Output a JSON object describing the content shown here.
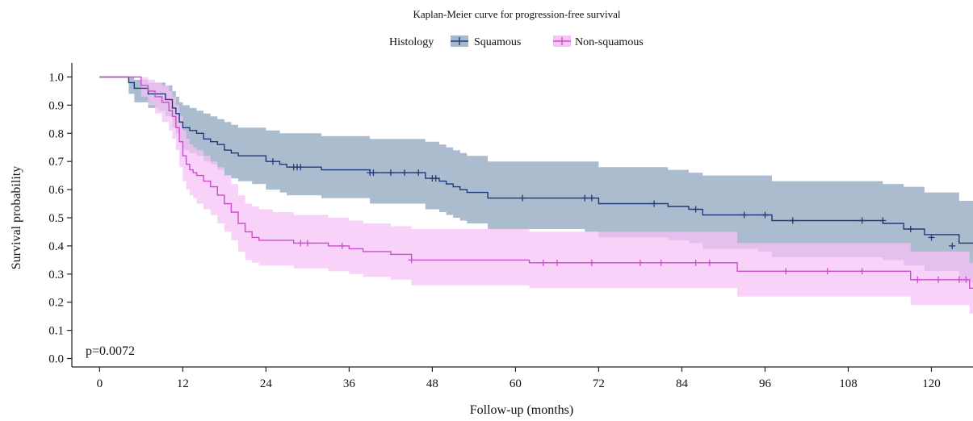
{
  "chart_data": {
    "type": "line",
    "title": "Kaplan-Meier curve for progression-free survival",
    "xlabel": "Follow-up (months)",
    "ylabel": "Survival probability",
    "xlim": [
      -4,
      126
    ],
    "ylim": [
      -0.03,
      1.05
    ],
    "xticks": [
      0,
      12,
      24,
      36,
      48,
      60,
      72,
      84,
      96,
      108,
      120
    ],
    "yticks": [
      0.0,
      0.1,
      0.2,
      0.3,
      0.4,
      0.5,
      0.6,
      0.7,
      0.8,
      0.9,
      1.0
    ],
    "xtick_labels": [
      "0",
      "12",
      "24",
      "36",
      "48",
      "60",
      "72",
      "84",
      "96",
      "108",
      "120"
    ],
    "ytick_labels": [
      "0.0",
      "0.1",
      "0.2",
      "0.3",
      "0.4",
      "0.5",
      "0.6",
      "0.7",
      "0.8",
      "0.9",
      "1.0"
    ],
    "grid": false,
    "legend": {
      "title": "Histology",
      "placement": "top-center"
    },
    "annotation": "p=0.0072",
    "series": [
      {
        "name": "Squamous",
        "color": "#1f3a7a",
        "band_color": "#a6b8cc",
        "x": [
          0,
          3.8,
          4.2,
          5.0,
          6.0,
          7.0,
          8.5,
          9.5,
          10.5,
          11.0,
          11.5,
          12.0,
          13.0,
          14.0,
          15.0,
          16.0,
          17.0,
          18.0,
          19.0,
          20.0,
          22.0,
          24.0,
          26.0,
          27.0,
          30.0,
          32.0,
          39.0,
          45.0,
          47.0,
          49.0,
          50.0,
          51.0,
          52.0,
          53.0,
          56.0,
          70.0,
          72.0,
          79.0,
          82.0,
          85.0,
          87.0,
          95.0,
          97.0,
          105.0,
          113.0,
          116.0,
          119.0,
          124.0,
          126.0
        ],
        "y": [
          1.0,
          1.0,
          0.98,
          0.96,
          0.96,
          0.94,
          0.94,
          0.92,
          0.89,
          0.87,
          0.84,
          0.82,
          0.81,
          0.8,
          0.78,
          0.77,
          0.76,
          0.74,
          0.73,
          0.72,
          0.72,
          0.7,
          0.69,
          0.68,
          0.68,
          0.67,
          0.66,
          0.66,
          0.64,
          0.63,
          0.62,
          0.61,
          0.6,
          0.59,
          0.57,
          0.57,
          0.55,
          0.55,
          0.54,
          0.53,
          0.51,
          0.51,
          0.49,
          0.49,
          0.48,
          0.46,
          0.44,
          0.41,
          0.41
        ],
        "lower": [
          1.0,
          1.0,
          0.94,
          0.91,
          0.91,
          0.89,
          0.88,
          0.86,
          0.82,
          0.8,
          0.77,
          0.74,
          0.73,
          0.72,
          0.7,
          0.69,
          0.67,
          0.65,
          0.64,
          0.63,
          0.62,
          0.6,
          0.59,
          0.58,
          0.58,
          0.57,
          0.55,
          0.55,
          0.53,
          0.52,
          0.51,
          0.5,
          0.49,
          0.48,
          0.46,
          0.45,
          0.43,
          0.43,
          0.42,
          0.41,
          0.39,
          0.38,
          0.36,
          0.36,
          0.35,
          0.33,
          0.31,
          0.27,
          0.26
        ],
        "upper": [
          1.0,
          1.0,
          1.0,
          0.99,
          0.99,
          0.98,
          0.98,
          0.97,
          0.95,
          0.93,
          0.91,
          0.9,
          0.89,
          0.88,
          0.87,
          0.86,
          0.85,
          0.84,
          0.83,
          0.82,
          0.82,
          0.81,
          0.8,
          0.8,
          0.8,
          0.79,
          0.78,
          0.78,
          0.77,
          0.76,
          0.75,
          0.74,
          0.73,
          0.72,
          0.7,
          0.7,
          0.68,
          0.68,
          0.67,
          0.66,
          0.65,
          0.65,
          0.63,
          0.63,
          0.62,
          0.61,
          0.59,
          0.56,
          0.56
        ],
        "censor_x": [
          25,
          28,
          28.5,
          29,
          39,
          39.5,
          42,
          44,
          46,
          48,
          48.5,
          61,
          70,
          71,
          80,
          86,
          93,
          96,
          100,
          110,
          113,
          117,
          120,
          123
        ],
        "censor_y": [
          0.7,
          0.68,
          0.68,
          0.68,
          0.66,
          0.66,
          0.66,
          0.66,
          0.66,
          0.64,
          0.64,
          0.57,
          0.57,
          0.57,
          0.55,
          0.53,
          0.51,
          0.51,
          0.49,
          0.49,
          0.49,
          0.46,
          0.43,
          0.4
        ]
      },
      {
        "name": "Non-squamous",
        "color": "#c94fc9",
        "band_color": "#f5c3f5",
        "x": [
          0,
          5.0,
          6.0,
          7.0,
          8.0,
          9.0,
          10.0,
          10.5,
          11.0,
          11.5,
          12.0,
          12.5,
          13.0,
          13.5,
          14.0,
          15.0,
          16.0,
          17.0,
          18.0,
          19.0,
          20.0,
          21.0,
          22.0,
          23.0,
          25.0,
          28.0,
          33.0,
          36.0,
          38.0,
          42.0,
          45.0,
          58.0,
          62.0,
          80.0,
          92.0,
          98.0,
          106.0,
          111.0,
          117.0,
          120.0,
          124.0,
          125.5,
          126.0
        ],
        "y": [
          1.0,
          1.0,
          0.97,
          0.95,
          0.93,
          0.91,
          0.88,
          0.86,
          0.82,
          0.77,
          0.72,
          0.69,
          0.67,
          0.66,
          0.65,
          0.63,
          0.61,
          0.58,
          0.55,
          0.52,
          0.48,
          0.45,
          0.43,
          0.42,
          0.42,
          0.41,
          0.4,
          0.39,
          0.38,
          0.37,
          0.35,
          0.35,
          0.34,
          0.34,
          0.31,
          0.31,
          0.31,
          0.31,
          0.28,
          0.28,
          0.28,
          0.25,
          0.25
        ],
        "lower": [
          1.0,
          1.0,
          0.93,
          0.9,
          0.87,
          0.84,
          0.81,
          0.78,
          0.74,
          0.68,
          0.63,
          0.6,
          0.58,
          0.57,
          0.55,
          0.53,
          0.51,
          0.48,
          0.45,
          0.42,
          0.38,
          0.35,
          0.34,
          0.33,
          0.33,
          0.32,
          0.31,
          0.3,
          0.29,
          0.28,
          0.26,
          0.26,
          0.25,
          0.25,
          0.22,
          0.22,
          0.22,
          0.22,
          0.19,
          0.19,
          0.19,
          0.16,
          0.16
        ],
        "upper": [
          1.0,
          1.0,
          1.0,
          0.99,
          0.98,
          0.97,
          0.95,
          0.93,
          0.9,
          0.86,
          0.81,
          0.78,
          0.76,
          0.75,
          0.74,
          0.72,
          0.7,
          0.68,
          0.65,
          0.62,
          0.58,
          0.55,
          0.54,
          0.53,
          0.52,
          0.51,
          0.5,
          0.49,
          0.48,
          0.47,
          0.46,
          0.46,
          0.45,
          0.45,
          0.41,
          0.41,
          0.41,
          0.41,
          0.38,
          0.38,
          0.38,
          0.34,
          0.34
        ],
        "censor_x": [
          29,
          30,
          35,
          45,
          64,
          66,
          71,
          78,
          81,
          86,
          88,
          99,
          105,
          110,
          118,
          121,
          124,
          125
        ],
        "censor_y": [
          0.41,
          0.41,
          0.4,
          0.35,
          0.34,
          0.34,
          0.34,
          0.34,
          0.34,
          0.34,
          0.34,
          0.31,
          0.31,
          0.31,
          0.28,
          0.28,
          0.28,
          0.28
        ]
      }
    ]
  }
}
